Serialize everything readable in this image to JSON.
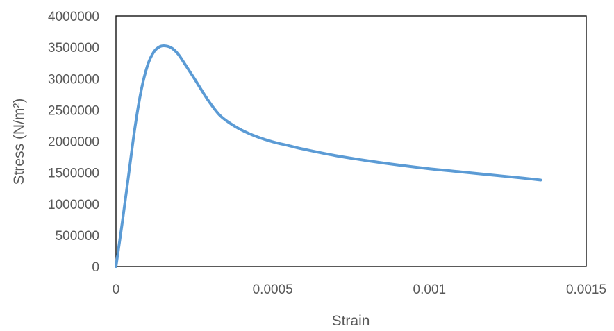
{
  "chart_data": {
    "type": "line",
    "xlabel": "Strain",
    "ylabel": "Stress (N/m²)",
    "xlim": [
      0,
      0.0015
    ],
    "ylim": [
      0,
      4000000
    ],
    "x_ticks": [
      "0",
      "0.0005",
      "0.001",
      "0.0015"
    ],
    "y_ticks": [
      "0",
      "500000",
      "1000000",
      "1500000",
      "2000000",
      "2500000",
      "3000000",
      "3500000",
      "4000000"
    ],
    "grid": false,
    "legend": "none",
    "colors": {
      "series": "#5B9BD5",
      "frame": "#000000",
      "text": "#595959"
    },
    "series": [
      {
        "x": [
          0,
          2e-05,
          4e-05,
          6e-05,
          8e-05,
          0.0001,
          0.00012,
          0.00014,
          0.00016,
          0.00018,
          0.0002,
          0.00022,
          0.00025,
          0.00028,
          0.0003,
          0.00033,
          0.00036,
          0.0004,
          0.00045,
          0.0005,
          0.00055,
          0.0006,
          0.0007,
          0.0008,
          0.0009,
          0.001,
          0.0011,
          0.0012,
          0.0013,
          0.001355
        ],
        "y": [
          0,
          700000,
          1450000,
          2200000,
          2800000,
          3200000,
          3420000,
          3510000,
          3520000,
          3480000,
          3380000,
          3230000,
          3000000,
          2760000,
          2610000,
          2420000,
          2300000,
          2180000,
          2070000,
          1990000,
          1930000,
          1870000,
          1770000,
          1690000,
          1620000,
          1560000,
          1510000,
          1460000,
          1410000,
          1380000
        ]
      }
    ]
  }
}
